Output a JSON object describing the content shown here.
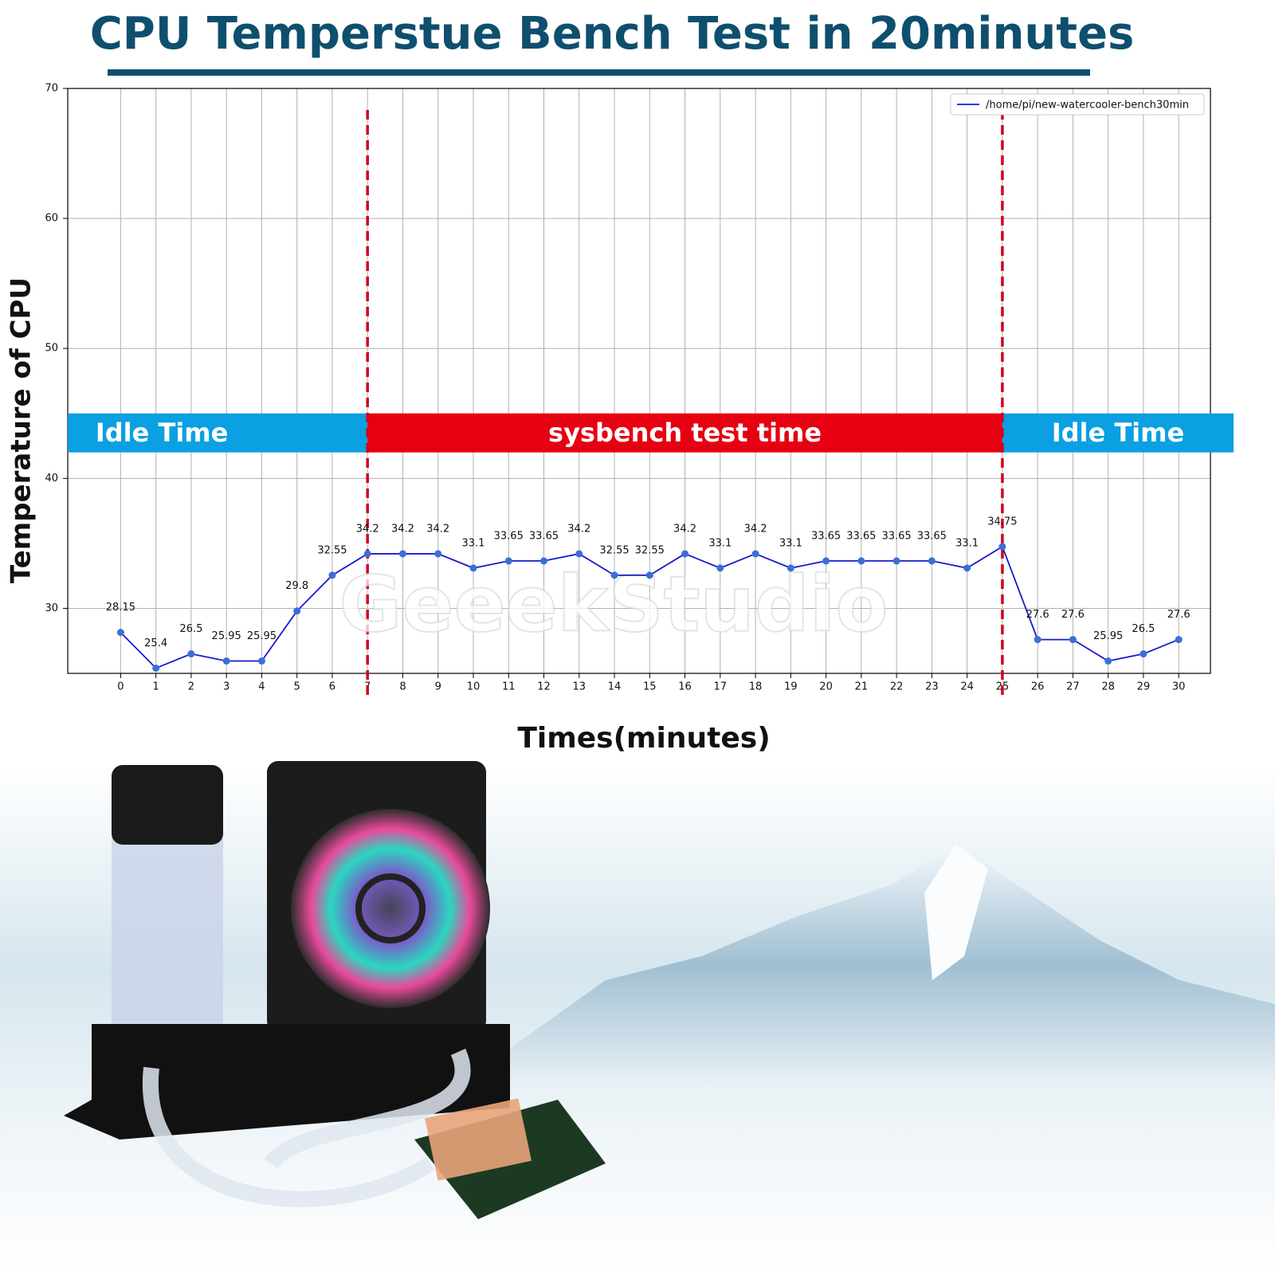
{
  "chart_data": {
    "type": "line",
    "title": "CPU Temperstue Bench Test in 20minutes",
    "x_label": "Times(minutes)",
    "y_label": "Temperature of CPU",
    "watermark": "GeeekStudio",
    "x": [
      0,
      1,
      2,
      3,
      4,
      5,
      6,
      7,
      8,
      9,
      10,
      11,
      12,
      13,
      14,
      15,
      16,
      17,
      18,
      19,
      20,
      21,
      22,
      23,
      24,
      25,
      26,
      27,
      28,
      29,
      30
    ],
    "series": [
      {
        "name": "/home/pi/new-watercooler-bench30min",
        "color": "#1a1acc",
        "marker_color": "#3b6fd4",
        "values": [
          28.15,
          25.4,
          26.5,
          25.95,
          25.95,
          29.8,
          32.55,
          34.2,
          34.2,
          34.2,
          33.1,
          33.65,
          33.65,
          34.2,
          32.55,
          32.55,
          34.2,
          33.1,
          34.2,
          33.1,
          33.65,
          33.65,
          33.65,
          33.65,
          33.1,
          34.75,
          27.6,
          27.6,
          25.95,
          26.5,
          27.6
        ]
      }
    ],
    "xlim": [
      -1.5,
      30.9
    ],
    "xticks": [
      0,
      1,
      2,
      3,
      4,
      5,
      6,
      7,
      8,
      9,
      10,
      11,
      12,
      13,
      14,
      15,
      16,
      17,
      18,
      19,
      20,
      21,
      22,
      23,
      24,
      25,
      26,
      27,
      28,
      29,
      30
    ],
    "ylim": [
      25,
      70
    ],
    "yticks": [
      30,
      40,
      50,
      60,
      70
    ],
    "grid": true,
    "legend": "upper right",
    "vlines": [
      7,
      25
    ],
    "vline_color": "#d0021b",
    "band_ylim": [
      42,
      45
    ],
    "bands": [
      {
        "label": "Idle Time",
        "color": "#0aa0e2"
      },
      {
        "label": "sysbench test time",
        "color": "#e60012"
      },
      {
        "label": "Idle Time",
        "color": "#0aa0e2"
      }
    ]
  }
}
